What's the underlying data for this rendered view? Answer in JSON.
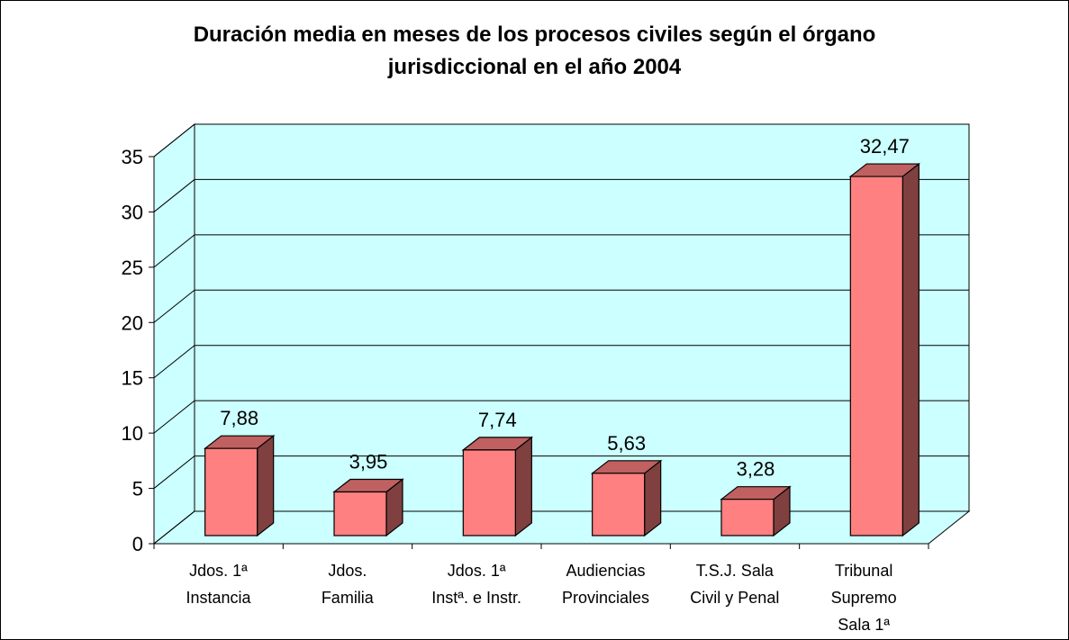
{
  "chart_data": {
    "type": "bar3d",
    "title": "Duración media en meses de los procesos civiles según el órgano\njurisdiccional en el año 2004",
    "categories": [
      "Jdos. 1ª\nInstancia",
      "Jdos.\nFamilia",
      "Jdos. 1ª\nInstª. e Instr.",
      "Audiencias\nProvinciales",
      "T.S.J. Sala\nCivil y Penal",
      "Tribunal\nSupremo\nSala 1ª"
    ],
    "values": [
      7.88,
      3.95,
      7.74,
      5.63,
      3.28,
      32.47
    ],
    "value_labels": [
      "7,88",
      "3,95",
      "7,74",
      "5,63",
      "3,28",
      "32,47"
    ],
    "color": "#ff8080",
    "wall_color": "#ccffff",
    "ylim": [
      0,
      35
    ],
    "yticks": [
      0,
      5,
      10,
      15,
      20,
      25,
      30,
      35
    ],
    "grid": true
  }
}
